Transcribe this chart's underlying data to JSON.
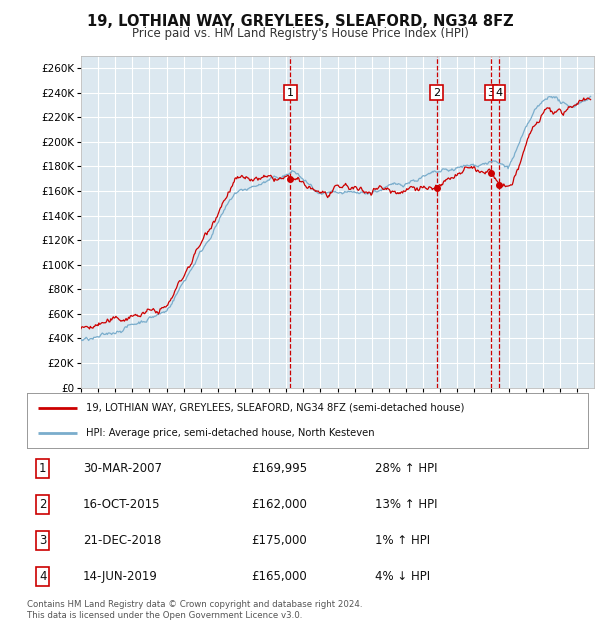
{
  "title": "19, LOTHIAN WAY, GREYLEES, SLEAFORD, NG34 8FZ",
  "subtitle": "Price paid vs. HM Land Registry's House Price Index (HPI)",
  "legend_line1": "19, LOTHIAN WAY, GREYLEES, SLEAFORD, NG34 8FZ (semi-detached house)",
  "legend_line2": "HPI: Average price, semi-detached house, North Kesteven",
  "footer": "Contains HM Land Registry data © Crown copyright and database right 2024.\nThis data is licensed under the Open Government Licence v3.0.",
  "transactions": [
    {
      "num": 1,
      "date": "30-MAR-2007",
      "price": 169995,
      "pct": "28%",
      "dir": "↑"
    },
    {
      "num": 2,
      "date": "16-OCT-2015",
      "price": 162000,
      "pct": "13%",
      "dir": "↑"
    },
    {
      "num": 3,
      "date": "21-DEC-2018",
      "price": 175000,
      "pct": "1%",
      "dir": "↑"
    },
    {
      "num": 4,
      "date": "14-JUN-2019",
      "price": 165000,
      "pct": "4%",
      "dir": "↓"
    }
  ],
  "transaction_years": [
    2007.25,
    2015.79,
    2018.97,
    2019.45
  ],
  "transaction_prices": [
    169995,
    162000,
    175000,
    165000
  ],
  "red_line_color": "#cc0000",
  "blue_line_color": "#7aadcc",
  "background_color": "#ffffff",
  "plot_bg_color": "#dce8f0",
  "grid_color": "#ffffff",
  "ylim": [
    0,
    270000
  ],
  "yticks": [
    0,
    20000,
    40000,
    60000,
    80000,
    100000,
    120000,
    140000,
    160000,
    180000,
    200000,
    220000,
    240000,
    260000
  ],
  "xmin": 1995.0,
  "xmax": 2025.0
}
